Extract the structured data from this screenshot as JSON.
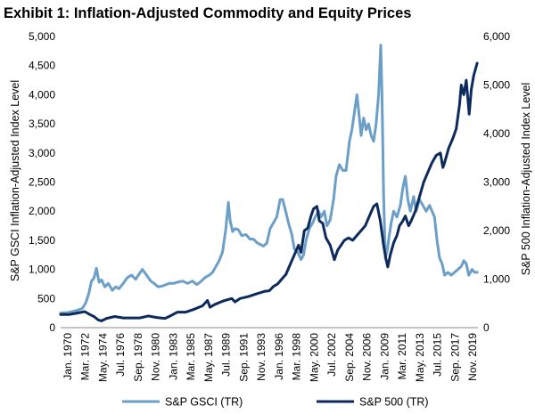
{
  "chart_data": {
    "type": "line",
    "title": "Exhibit 1: Inflation-Adjusted Commodity and Equity Prices",
    "ylabel_left": "S&P GSCI Inflation-Adjusted Index Level",
    "ylabel_right": "S&P 500 Inflation-Adjusted Index Level",
    "ylim_left": [
      0,
      5000
    ],
    "ylim_right": [
      0,
      6000
    ],
    "yticks_left": [
      "0",
      "500",
      "1,000",
      "1,500",
      "2,000",
      "2,500",
      "3,000",
      "3,500",
      "4,000",
      "4,500",
      "5,000"
    ],
    "yticks_right": [
      "0",
      "1,000",
      "2,000",
      "3,000",
      "4,000",
      "5,000",
      "6,000"
    ],
    "xlim": [
      1970.0,
      2020.0
    ],
    "xtick_labels": [
      "Jan. 1970",
      "Mar. 1972",
      "May. 1974",
      "Jul. 1976",
      "Sep. 1978",
      "Nov. 1980",
      "Jan. 1983",
      "Mar. 1985",
      "May. 1987",
      "Jul. 1989",
      "Sep. 1991",
      "Nov. 1993",
      "Jan. 1996",
      "Mar. 1998",
      "May. 2000",
      "Jul. 2002",
      "Sep. 2004",
      "Nov. 2006",
      "Jan. 2009",
      "Mar. 2011",
      "May. 2013",
      "Jul. 2015",
      "Sep. 2017",
      "Nov. 2019"
    ],
    "legend_position": "bottom",
    "grid": false,
    "series": [
      {
        "name": "S&P GSCI (TR)",
        "axis": "left",
        "color": "#6b9fc8",
        "x": [
          1970.0,
          1971.0,
          1972.0,
          1972.6,
          1973.0,
          1973.4,
          1973.7,
          1974.0,
          1974.3,
          1974.6,
          1974.9,
          1975.3,
          1975.7,
          1976.2,
          1976.6,
          1977.0,
          1977.5,
          1978.0,
          1978.5,
          1979.0,
          1979.4,
          1979.8,
          1980.3,
          1980.8,
          1981.2,
          1981.7,
          1982.3,
          1983.0,
          1983.5,
          1984.0,
          1984.6,
          1985.2,
          1985.8,
          1986.3,
          1986.8,
          1987.3,
          1987.8,
          1988.2,
          1988.6,
          1989.0,
          1989.4,
          1989.8,
          1990.1,
          1990.3,
          1990.6,
          1990.9,
          1991.3,
          1991.7,
          1992.2,
          1992.7,
          1993.1,
          1993.5,
          1993.9,
          1994.3,
          1994.7,
          1995.1,
          1995.5,
          1995.9,
          1996.3,
          1996.6,
          1997.0,
          1997.3,
          1997.7,
          1998.0,
          1998.4,
          1998.8,
          1999.1,
          1999.4,
          1999.8,
          2000.2,
          2000.5,
          2000.9,
          2001.2,
          2001.6,
          2001.9,
          2002.3,
          2002.7,
          2003.0,
          2003.4,
          2003.8,
          2004.2,
          2004.6,
          2004.9,
          2005.2,
          2005.5,
          2005.8,
          2006.0,
          2006.3,
          2006.6,
          2006.9,
          2007.2,
          2007.5,
          2007.8,
          2008.1,
          2008.35,
          2008.5,
          2008.7,
          2008.9,
          2009.1,
          2009.3,
          2009.6,
          2009.9,
          2010.3,
          2010.7,
          2011.0,
          2011.3,
          2011.6,
          2011.9,
          2012.3,
          2012.6,
          2013.0,
          2013.4,
          2013.8,
          2014.2,
          2014.5,
          2014.8,
          2015.1,
          2015.4,
          2015.7,
          2016.0,
          2016.4,
          2016.8,
          2017.2,
          2017.6,
          2018.0,
          2018.3,
          2018.6,
          2018.9,
          2019.3,
          2019.6,
          2019.9
        ],
        "values": [
          250,
          260,
          300,
          330,
          420,
          600,
          800,
          850,
          1020,
          780,
          820,
          700,
          760,
          640,
          700,
          670,
          760,
          860,
          900,
          830,
          920,
          1000,
          900,
          800,
          760,
          700,
          720,
          760,
          760,
          780,
          800,
          760,
          800,
          740,
          790,
          860,
          900,
          950,
          1050,
          1150,
          1300,
          1700,
          2150,
          1850,
          1650,
          1700,
          1680,
          1580,
          1600,
          1520,
          1520,
          1460,
          1430,
          1400,
          1450,
          1700,
          1800,
          1900,
          2200,
          2200,
          1980,
          1800,
          1600,
          1350,
          1300,
          1170,
          1250,
          1500,
          1700,
          1800,
          1900,
          2000,
          1900,
          2000,
          1750,
          1850,
          2200,
          2600,
          2800,
          2700,
          2700,
          3200,
          3400,
          3700,
          4000,
          3600,
          3300,
          3600,
          3400,
          3500,
          3300,
          3200,
          3500,
          4000,
          4850,
          4000,
          2300,
          1200,
          1300,
          1500,
          1800,
          2000,
          1900,
          2100,
          2400,
          2600,
          2200,
          2000,
          2250,
          2000,
          2200,
          2100,
          2000,
          2100,
          2000,
          1900,
          1500,
          1200,
          1100,
          900,
          950,
          900,
          950,
          1000,
          1050,
          1150,
          1100,
          900,
          1000,
          950,
          950
        ]
      },
      {
        "name": "S&P 500 (TR)",
        "axis": "right",
        "color": "#0d2a5c",
        "x": [
          1970.0,
          1971.0,
          1972.0,
          1972.9,
          1973.5,
          1974.0,
          1974.5,
          1974.9,
          1975.5,
          1976.5,
          1977.5,
          1978.5,
          1979.5,
          1980.5,
          1981.5,
          1982.5,
          1983.0,
          1984.0,
          1985.0,
          1986.0,
          1987.0,
          1987.6,
          1987.9,
          1988.5,
          1989.5,
          1990.5,
          1990.9,
          1991.5,
          1992.5,
          1993.5,
          1994.5,
          1995.0,
          1995.5,
          1996.0,
          1996.5,
          1997.0,
          1997.5,
          1998.0,
          1998.5,
          1998.8,
          1999.2,
          1999.6,
          2000.0,
          2000.3,
          2000.7,
          2001.0,
          2001.4,
          2001.8,
          2002.3,
          2002.8,
          2003.2,
          2003.6,
          2004.0,
          2004.5,
          2005.0,
          2005.5,
          2006.0,
          2006.5,
          2007.0,
          2007.5,
          2007.9,
          2008.3,
          2008.7,
          2009.0,
          2009.2,
          2009.5,
          2009.9,
          2010.3,
          2010.6,
          2011.0,
          2011.3,
          2011.7,
          2012.0,
          2012.5,
          2013.0,
          2013.5,
          2014.0,
          2014.5,
          2015.0,
          2015.5,
          2015.8,
          2016.0,
          2016.5,
          2017.0,
          2017.4,
          2017.8,
          2018.0,
          2018.3,
          2018.6,
          2018.95,
          2019.2,
          2019.5,
          2019.9
        ],
        "values": [
          270,
          270,
          300,
          330,
          270,
          230,
          160,
          140,
          190,
          230,
          200,
          200,
          200,
          240,
          210,
          190,
          230,
          320,
          320,
          380,
          450,
          560,
          420,
          480,
          550,
          600,
          530,
          600,
          640,
          700,
          750,
          760,
          850,
          900,
          1000,
          1100,
          1300,
          1500,
          1700,
          1550,
          2000,
          2050,
          2300,
          2450,
          2500,
          2200,
          2150,
          1850,
          1700,
          1400,
          1600,
          1700,
          1800,
          1850,
          1800,
          1900,
          2000,
          2100,
          2300,
          2500,
          2550,
          2200,
          1700,
          1400,
          1250,
          1500,
          1750,
          1900,
          2100,
          2200,
          2300,
          2100,
          2200,
          2400,
          2700,
          3000,
          3200,
          3400,
          3550,
          3600,
          3300,
          3400,
          3700,
          3900,
          4100,
          4600,
          5000,
          4800,
          5100,
          4400,
          4900,
          5200,
          5450
        ]
      }
    ]
  }
}
